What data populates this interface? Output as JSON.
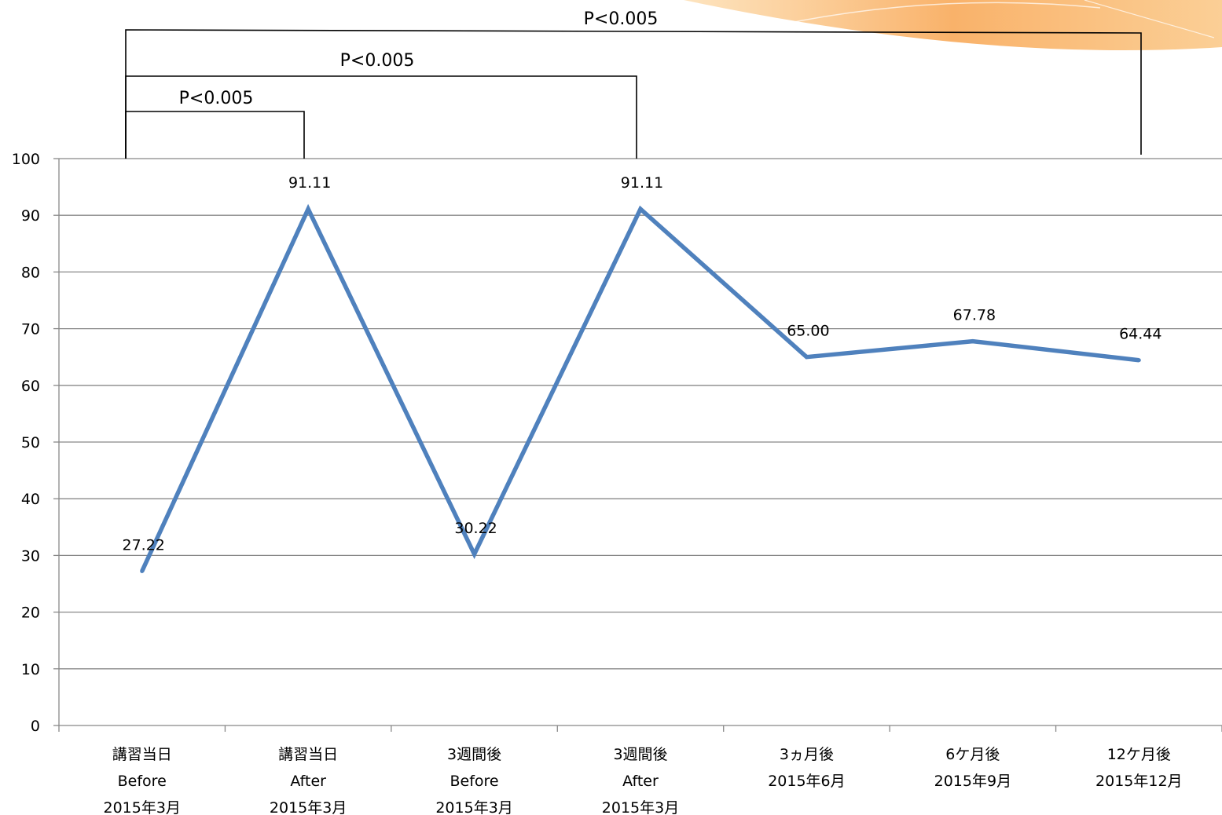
{
  "chart_data": {
    "type": "line",
    "title": "",
    "xlabel": "",
    "ylabel": "",
    "categories": [
      [
        "講習当日",
        "Before",
        "2015年3月"
      ],
      [
        "講習当日",
        "After",
        "2015年3月"
      ],
      [
        "3週間後",
        "Before",
        "2015年3月"
      ],
      [
        "3週間後",
        "After",
        "2015年3月"
      ],
      [
        "3ヵ月後",
        "2015年6月"
      ],
      [
        "6ケ月後",
        "2015年9月"
      ],
      [
        "12ケ月後",
        "2015年12月"
      ]
    ],
    "series": [
      {
        "values": [
          27.22,
          91.11,
          30.22,
          91.11,
          65.0,
          67.78,
          64.44
        ]
      }
    ],
    "data_labels": [
      "27.22",
      "91.11",
      "30.22",
      "91.11",
      "65.00",
      "67.78",
      "64.44"
    ],
    "ylim": [
      0,
      100
    ],
    "yticks": [
      0,
      10,
      20,
      30,
      40,
      50,
      60,
      70,
      80,
      90,
      100
    ],
    "grid": true,
    "legend": "none",
    "line_color": "#4F81BD",
    "annotations": [
      {
        "text": "P<0.005",
        "from_category": 0,
        "to_category": 1
      },
      {
        "text": "P<0.005",
        "from_category": 0,
        "to_category": 3
      },
      {
        "text": "P<0.005",
        "from_category": 0,
        "to_category": 6
      }
    ]
  }
}
